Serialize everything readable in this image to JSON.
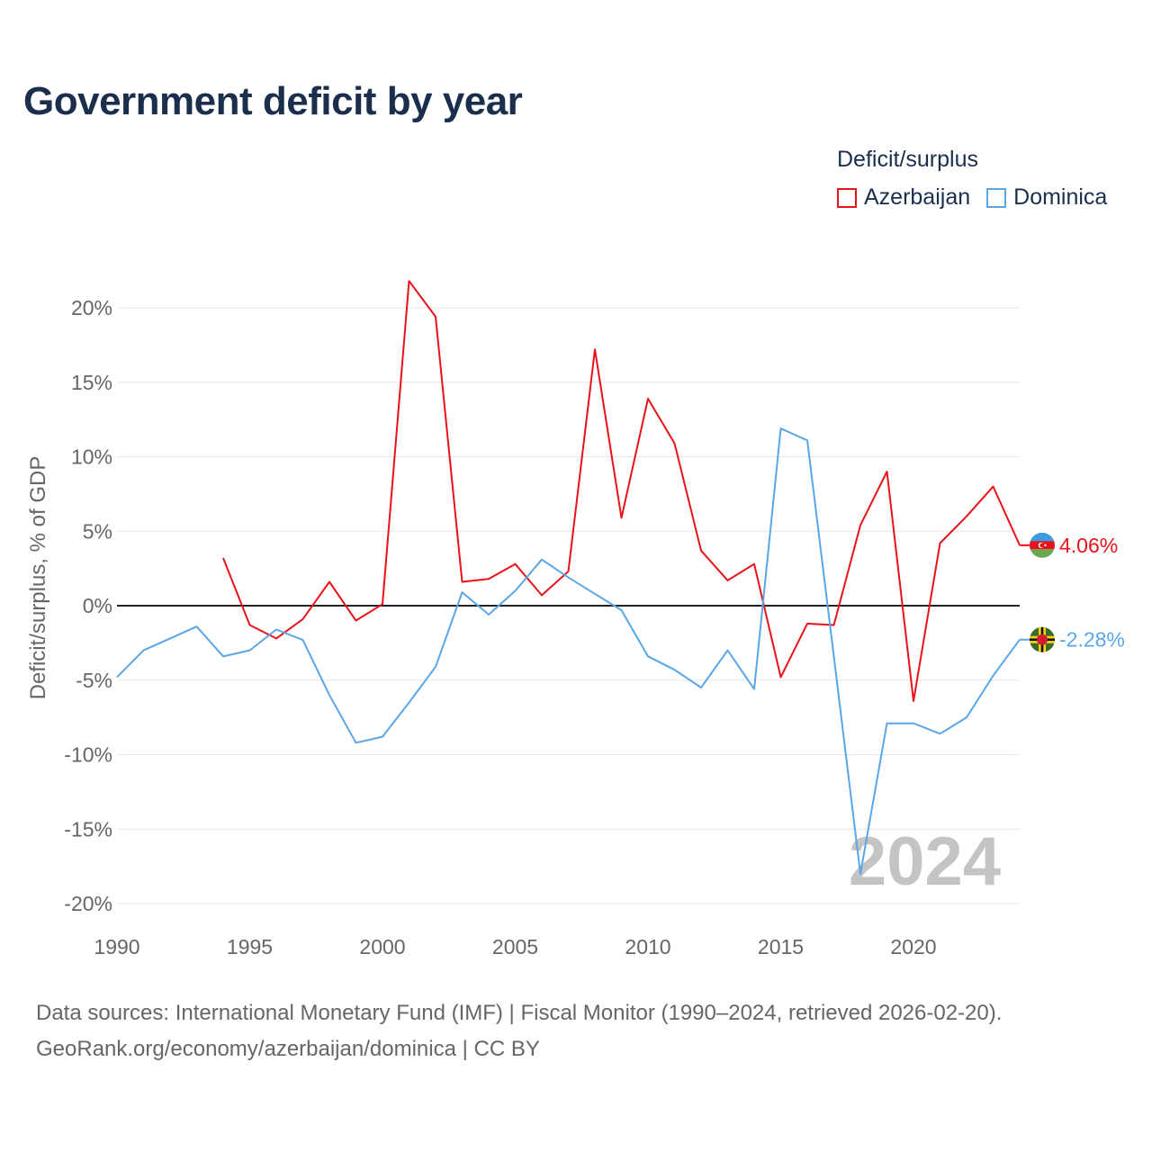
{
  "title": "Government deficit by year",
  "legend": {
    "title": "Deficit/surplus",
    "items": [
      {
        "name": "Azerbaijan",
        "color": "#e8121a"
      },
      {
        "name": "Dominica",
        "color": "#5aa6e6"
      }
    ]
  },
  "chart_data": {
    "type": "line",
    "title": "Government deficit by year",
    "xlabel": "",
    "ylabel": "Deficit/surplus, % of GDP",
    "xlim": [
      1990,
      2024
    ],
    "ylim": [
      -20,
      22
    ],
    "y_ticks": [
      20,
      15,
      10,
      5,
      0,
      -5,
      -10,
      -15,
      -20
    ],
    "y_tick_labels": [
      "20%",
      "15%",
      "10%",
      "5%",
      "0%",
      "-5%",
      "-10%",
      "-15%",
      "-20%"
    ],
    "x_ticks": [
      1990,
      1995,
      2000,
      2005,
      2010,
      2015,
      2020
    ],
    "x_tick_labels": [
      "1990",
      "1995",
      "2000",
      "2005",
      "2010",
      "2015",
      "2020"
    ],
    "year_watermark": "2024",
    "series": [
      {
        "name": "Azerbaijan",
        "color": "#e8121a",
        "end_label": "4.06%",
        "flag_icon": "azerbaijan-flag-icon",
        "x": [
          1994,
          1995,
          1996,
          1997,
          1998,
          1999,
          2000,
          2001,
          2002,
          2003,
          2004,
          2005,
          2006,
          2007,
          2008,
          2009,
          2010,
          2011,
          2012,
          2013,
          2014,
          2015,
          2016,
          2017,
          2018,
          2019,
          2020,
          2021,
          2022,
          2023,
          2024
        ],
        "values": [
          3.2,
          -1.3,
          -2.2,
          -0.9,
          1.6,
          -1.0,
          0.1,
          21.8,
          19.4,
          1.6,
          1.8,
          2.8,
          0.7,
          2.3,
          17.2,
          5.9,
          13.9,
          10.9,
          3.7,
          1.7,
          2.8,
          -4.8,
          -1.2,
          -1.3,
          5.4,
          9.0,
          -6.4,
          4.2,
          6.0,
          8.0,
          4.06
        ]
      },
      {
        "name": "Dominica",
        "color": "#5aa6e6",
        "end_label": "-2.28%",
        "flag_icon": "dominica-flag-icon",
        "x": [
          1990,
          1991,
          1992,
          1993,
          1994,
          1995,
          1996,
          1997,
          1998,
          1999,
          2000,
          2001,
          2002,
          2003,
          2004,
          2005,
          2006,
          2007,
          2008,
          2009,
          2010,
          2011,
          2012,
          2013,
          2014,
          2015,
          2016,
          2017,
          2018,
          2019,
          2020,
          2021,
          2022,
          2023,
          2024
        ],
        "values": [
          -4.8,
          -3.0,
          -2.2,
          -1.4,
          -3.4,
          -3.0,
          -1.6,
          -2.3,
          -6.0,
          -9.2,
          -8.8,
          -6.5,
          -4.1,
          0.9,
          -0.6,
          1.0,
          3.1,
          1.9,
          0.8,
          -0.3,
          -3.4,
          -4.3,
          -5.5,
          -3.0,
          -5.6,
          11.9,
          11.1,
          -3.4,
          -18.0,
          -7.9,
          -7.9,
          -8.6,
          -7.5,
          -4.7,
          -2.28
        ]
      }
    ]
  },
  "footer": {
    "line1": "Data sources: International Monetary Fund (IMF) | Fiscal Monitor (1990–2024, retrieved 2026-02-20).",
    "line2": "GeoRank.org/economy/azerbaijan/dominica | CC BY"
  }
}
